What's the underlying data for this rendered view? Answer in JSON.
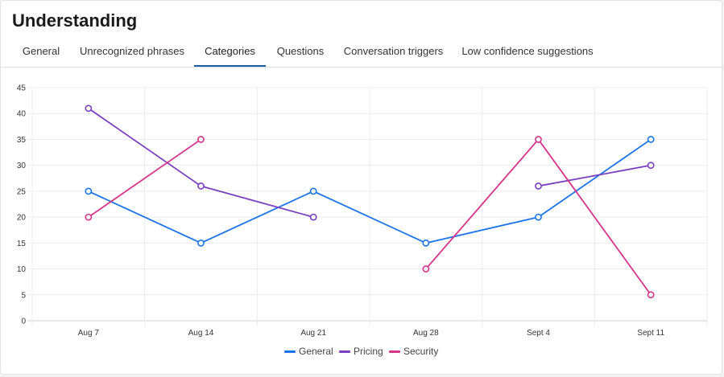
{
  "page": {
    "title": "Understanding"
  },
  "tabs": [
    {
      "label": "General",
      "active": false
    },
    {
      "label": "Unrecognized phrases",
      "active": false
    },
    {
      "label": "Categories",
      "active": true
    },
    {
      "label": "Questions",
      "active": false
    },
    {
      "label": "Conversation triggers",
      "active": false
    },
    {
      "label": "Low confidence suggestions",
      "active": false
    }
  ],
  "chart_data": {
    "type": "line",
    "title": "",
    "xlabel": "",
    "ylabel": "",
    "categories": [
      "Aug 7",
      "Aug 14",
      "Aug 21",
      "Aug 28",
      "Sept 4",
      "Sept 11"
    ],
    "ylim": [
      0,
      45
    ],
    "yticks": [
      0,
      5,
      10,
      15,
      20,
      25,
      30,
      35,
      40,
      45
    ],
    "grid": true,
    "legend_position": "bottom",
    "series": [
      {
        "name": "General",
        "color": "#1a73e8",
        "values": [
          25,
          15,
          25,
          15,
          20,
          35
        ]
      },
      {
        "name": "Pricing",
        "color": "#7a3fbf",
        "values": [
          41,
          26,
          20,
          null,
          26,
          30
        ]
      },
      {
        "name": "Security",
        "color": "#d6338a",
        "values": [
          20,
          35,
          null,
          10,
          35,
          5
        ]
      }
    ]
  }
}
